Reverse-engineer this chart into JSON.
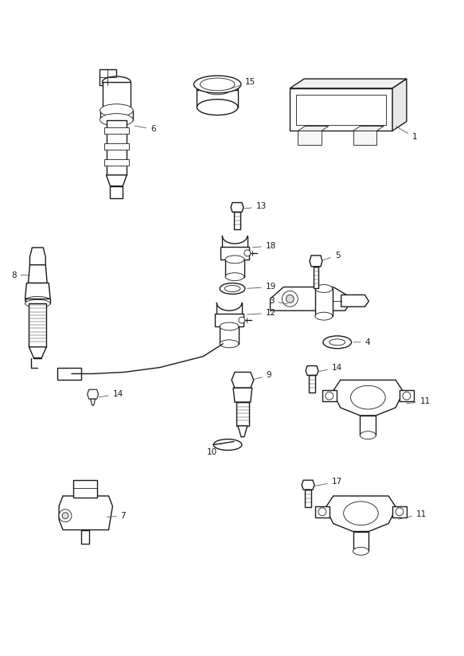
{
  "bg_color": "#ffffff",
  "line_color": "#1a1a1a",
  "label_color": "#222222",
  "fig_width": 5.83,
  "fig_height": 8.24,
  "dpi": 100,
  "label_fs": 7.5,
  "lw_main": 1.0,
  "lw_thin": 0.6,
  "lw_detail": 0.4
}
